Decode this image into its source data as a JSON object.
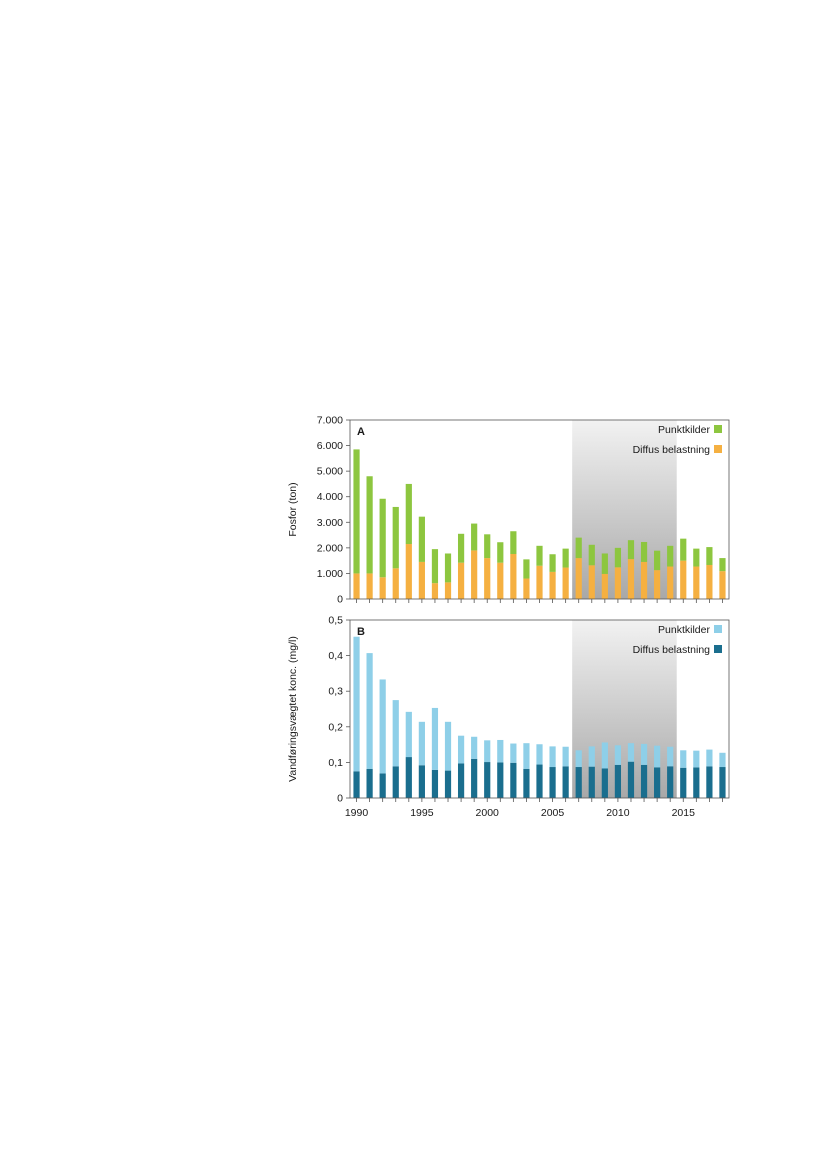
{
  "chart_data": [
    {
      "panel_label": "A",
      "type": "bar",
      "stacked": true,
      "ylabel": "Fosfor (ton)",
      "ylim": [
        0,
        7000
      ],
      "yticks": [
        "0",
        "1.000",
        "2.000",
        "3.000",
        "4.000",
        "5.000",
        "6.000",
        "7.000"
      ],
      "shaded_range": [
        2006.5,
        2014.5
      ],
      "legend_placement": "top-right",
      "x": [
        1990,
        1991,
        1992,
        1993,
        1994,
        1995,
        1996,
        1997,
        1998,
        1999,
        2000,
        2001,
        2002,
        2003,
        2004,
        2005,
        2006,
        2007,
        2008,
        2009,
        2010,
        2011,
        2012,
        2013,
        2014,
        2015,
        2016,
        2017,
        2018
      ],
      "series": [
        {
          "name": "Diffus belastning",
          "color": "#f5b041",
          "values": [
            1000,
            1000,
            850,
            1200,
            2150,
            1450,
            620,
            650,
            1420,
            1900,
            1600,
            1420,
            1760,
            800,
            1300,
            1060,
            1230,
            1600,
            1320,
            980,
            1240,
            1560,
            1450,
            1130,
            1270,
            1500,
            1270,
            1330,
            1090
          ]
        },
        {
          "name": "Punktkilder",
          "color": "#8dc63f",
          "values": [
            4850,
            3800,
            3070,
            2400,
            2350,
            1770,
            1330,
            1130,
            1130,
            1050,
            930,
            800,
            890,
            750,
            780,
            690,
            740,
            800,
            800,
            800,
            760,
            740,
            780,
            760,
            810,
            860,
            700,
            700,
            510
          ]
        }
      ]
    },
    {
      "panel_label": "B",
      "type": "bar",
      "stacked": true,
      "ylabel": "Vandføringsvægtet konc. (mg/l)",
      "ylim": [
        0,
        0.5
      ],
      "yticks": [
        "0",
        "0,1",
        "0,2",
        "0,3",
        "0,4",
        "0,5"
      ],
      "xticks": [
        "1990",
        "1995",
        "2000",
        "2005",
        "2010",
        "2015"
      ],
      "shaded_range": [
        2006.5,
        2014.5
      ],
      "legend_placement": "top-right",
      "x": [
        1990,
        1991,
        1992,
        1993,
        1994,
        1995,
        1996,
        1997,
        1998,
        1999,
        2000,
        2001,
        2002,
        2003,
        2004,
        2005,
        2006,
        2007,
        2008,
        2009,
        2010,
        2011,
        2012,
        2013,
        2014,
        2015,
        2016,
        2017,
        2018
      ],
      "series": [
        {
          "name": "Diffus belastning",
          "color": "#1a6e8e",
          "values": [
            0.075,
            0.082,
            0.069,
            0.089,
            0.115,
            0.092,
            0.079,
            0.077,
            0.097,
            0.11,
            0.101,
            0.1,
            0.099,
            0.082,
            0.094,
            0.087,
            0.089,
            0.087,
            0.088,
            0.083,
            0.093,
            0.102,
            0.093,
            0.086,
            0.089,
            0.085,
            0.086,
            0.089,
            0.087
          ]
        },
        {
          "name": "Punktkilder",
          "color": "#8ecfe8",
          "values": [
            0.378,
            0.325,
            0.264,
            0.186,
            0.127,
            0.122,
            0.174,
            0.137,
            0.078,
            0.062,
            0.061,
            0.063,
            0.054,
            0.072,
            0.057,
            0.058,
            0.055,
            0.047,
            0.057,
            0.073,
            0.055,
            0.052,
            0.059,
            0.061,
            0.055,
            0.049,
            0.047,
            0.047,
            0.04
          ]
        }
      ]
    }
  ]
}
